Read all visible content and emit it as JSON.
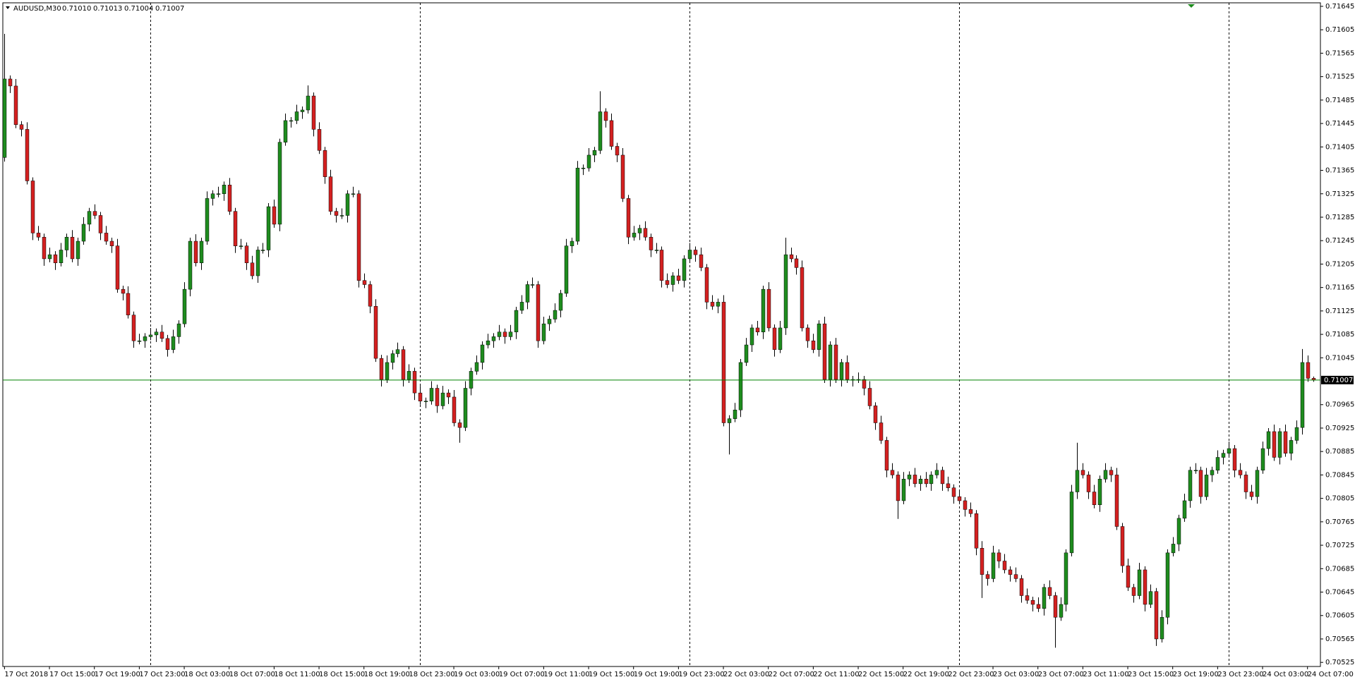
{
  "chart_data": {
    "type": "candlestick",
    "symbol": "AUDUSD,M30",
    "header_values": [
      "0.71010",
      "0.71013",
      "0.71004",
      "0.71007"
    ],
    "up_color": "#1e8c1e",
    "down_color": "#d42020",
    "wick_color": "#000000",
    "grid": false,
    "last_price": {
      "value": 0.71007,
      "label": "0.71007"
    },
    "last_price_color": "#008000",
    "xlim": [
      -0.3,
      234.3
    ],
    "ylim": [
      0.70518,
      0.71651
    ],
    "separators": [
      26,
      74,
      122,
      170,
      218
    ],
    "yticks": [
      0.71645,
      0.71605,
      0.71565,
      0.71525,
      0.71485,
      0.71445,
      0.71405,
      0.71365,
      0.71325,
      0.71285,
      0.71245,
      0.71205,
      0.71165,
      0.71125,
      0.71085,
      0.71045,
      0.70965,
      0.70925,
      0.70885,
      0.70845,
      0.70805,
      0.70765,
      0.70725,
      0.70685,
      0.70645,
      0.70605,
      0.70565,
      0.70525
    ],
    "xticks": [
      {
        "value": 0,
        "label": "17 Oct 2018"
      },
      {
        "value": 8,
        "label": "17 Oct 15:00"
      },
      {
        "value": 16,
        "label": "17 Oct 19:00"
      },
      {
        "value": 24,
        "label": "17 Oct 23:00"
      },
      {
        "value": 32,
        "label": "18 Oct 03:00"
      },
      {
        "value": 40,
        "label": "18 Oct 07:00"
      },
      {
        "value": 48,
        "label": "18 Oct 11:00"
      },
      {
        "value": 56,
        "label": "18 Oct 15:00"
      },
      {
        "value": 64,
        "label": "18 Oct 19:00"
      },
      {
        "value": 72,
        "label": "18 Oct 23:00"
      },
      {
        "value": 80,
        "label": "19 Oct 03:00"
      },
      {
        "value": 88,
        "label": "19 Oct 07:00"
      },
      {
        "value": 96,
        "label": "19 Oct 11:00"
      },
      {
        "value": 104,
        "label": "19 Oct 15:00"
      },
      {
        "value": 112,
        "label": "19 Oct 19:00"
      },
      {
        "value": 120,
        "label": "19 Oct 23:00"
      },
      {
        "value": 128,
        "label": "22 Oct 03:00"
      },
      {
        "value": 136,
        "label": "22 Oct 07:00"
      },
      {
        "value": 144,
        "label": "22 Oct 11:00"
      },
      {
        "value": 152,
        "label": "22 Oct 15:00"
      },
      {
        "value": 160,
        "label": "22 Oct 19:00"
      },
      {
        "value": 168,
        "label": "22 Oct 23:00"
      },
      {
        "value": 176,
        "label": "23 Oct 03:00"
      },
      {
        "value": 184,
        "label": "23 Oct 07:00"
      },
      {
        "value": 192,
        "label": "23 Oct 11:00"
      },
      {
        "value": 200,
        "label": "23 Oct 15:00"
      },
      {
        "value": 208,
        "label": "23 Oct 19:00"
      },
      {
        "value": 216,
        "label": "23 Oct 23:00"
      },
      {
        "value": 224,
        "label": "24 Oct 03:00"
      },
      {
        "value": 232,
        "label": "24 Oct 07:00"
      }
    ],
    "open": [
      0.71387,
      0.71521,
      0.71509,
      0.71443,
      0.71435,
      0.71347,
      0.71258,
      0.71251,
      0.71214,
      0.71221,
      0.71207,
      0.71229,
      0.71251,
      0.71214,
      0.71244,
      0.71273,
      0.71295,
      0.71288,
      0.71258,
      0.71244,
      0.71236,
      0.71162,
      0.71155,
      0.71118,
      0.71074,
      0.71074,
      0.71081,
      0.71084,
      0.71089,
      0.71078,
      0.71059,
      0.71081,
      0.71103,
      0.71162,
      0.71244,
      0.71207,
      0.71244,
      0.71317,
      0.71325,
      0.71325,
      0.7134,
      0.71295,
      0.71236,
      0.71236,
      0.71207,
      0.71185,
      0.71229,
      0.71229,
      0.71303,
      0.71273,
      0.71413,
      0.7145,
      0.7145,
      0.71465,
      0.71468,
      0.71492,
      0.71435,
      0.71399,
      0.71354,
      0.71295,
      0.71288,
      0.71288,
      0.71325,
      0.71325,
      0.71177,
      0.7117,
      0.71133,
      0.71044,
      0.71008,
      0.71037,
      0.71052,
      0.71059,
      0.71008,
      0.71022,
      0.70985,
      0.70971,
      0.70971,
      0.70993,
      0.70963,
      0.70985,
      0.70978,
      0.70934,
      0.70926,
      0.70993,
      0.71022,
      0.71037,
      0.71067,
      0.71074,
      0.71081,
      0.71089,
      0.71081,
      0.71089,
      0.71126,
      0.7114,
      0.7117,
      0.7117,
      0.71074,
      0.71103,
      0.71111,
      0.71126,
      0.71155,
      0.71236,
      0.71244,
      0.71369,
      0.71369,
      0.71391,
      0.71399,
      0.71465,
      0.7145,
      0.71406,
      0.71391,
      0.71317,
      0.71251,
      0.71258,
      0.71266,
      0.71251,
      0.71229,
      0.71229,
      0.71177,
      0.7117,
      0.71185,
      0.71177,
      0.71214,
      0.71229,
      0.71221,
      0.71199,
      0.7114,
      0.71133,
      0.7114,
      0.70934,
      0.70941,
      0.70956,
      0.71037,
      0.71067,
      0.71096,
      0.71089,
      0.71162,
      0.71096,
      0.71059,
      0.71096,
      0.71221,
      0.71214,
      0.71199,
      0.71096,
      0.71074,
      0.71059,
      0.71103,
      0.71008,
      0.71067,
      0.71008,
      0.71037,
      0.71008,
      0.71008,
      0.71008,
      0.70993,
      0.70963,
      0.70934,
      0.70904,
      0.70853,
      0.70845,
      0.70801,
      0.70838,
      0.70845,
      0.7083,
      0.70838,
      0.7083,
      0.70845,
      0.70853,
      0.7083,
      0.70823,
      0.70808,
      0.70801,
      0.70786,
      0.70779,
      0.7072,
      0.70675,
      0.70668,
      0.70712,
      0.70698,
      0.70683,
      0.70675,
      0.70668,
      0.70639,
      0.70631,
      0.70624,
      0.70617,
      0.70653,
      0.70639,
      0.70602,
      0.70624,
      0.70712,
      0.70816,
      0.70853,
      0.70845,
      0.70816,
      0.70794,
      0.70838,
      0.70853,
      0.70845,
      0.70757,
      0.7069,
      0.70653,
      0.70639,
      0.70683,
      0.70624,
      0.70646,
      0.70565,
      0.70602,
      0.70712,
      0.70727,
      0.70771,
      0.70801,
      0.70853,
      0.70853,
      0.70808,
      0.70845,
      0.70853,
      0.70875,
      0.70882,
      0.7089,
      0.70853,
      0.70845,
      0.70816,
      0.70808,
      0.70853,
      0.7089,
      0.70919,
      0.70875,
      0.70919,
      0.70882,
      0.70904,
      0.70926,
      0.71037,
      0.7101
    ],
    "high": [
      0.71598,
      0.71527,
      0.71521,
      0.71449,
      0.71447,
      0.71353,
      0.7127,
      0.71257,
      0.71233,
      0.71227,
      0.71241,
      0.71257,
      0.71263,
      0.7125,
      0.71285,
      0.71301,
      0.71307,
      0.71294,
      0.7127,
      0.7125,
      0.71248,
      0.71168,
      0.71167,
      0.71124,
      0.71086,
      0.71087,
      0.71096,
      0.71095,
      0.71101,
      0.71084,
      0.71093,
      0.71109,
      0.71174,
      0.7125,
      0.71256,
      0.7125,
      0.71329,
      0.71331,
      0.71337,
      0.71346,
      0.71352,
      0.71301,
      0.71248,
      0.71242,
      0.71219,
      0.71235,
      0.71241,
      0.71309,
      0.71315,
      0.71419,
      0.71462,
      0.71456,
      0.71477,
      0.71474,
      0.7151,
      0.71498,
      0.71447,
      0.71405,
      0.71366,
      0.71301,
      0.713,
      0.71331,
      0.71337,
      0.71331,
      0.71189,
      0.71176,
      0.71145,
      0.7105,
      0.71049,
      0.71058,
      0.71071,
      0.71065,
      0.71034,
      0.71028,
      0.70997,
      0.70977,
      0.71005,
      0.70999,
      0.70997,
      0.70991,
      0.7099,
      0.7094,
      0.71005,
      0.71028,
      0.71049,
      0.71073,
      0.71086,
      0.71087,
      0.71101,
      0.71095,
      0.71101,
      0.71132,
      0.71152,
      0.71176,
      0.71182,
      0.71176,
      0.71115,
      0.71117,
      0.71138,
      0.71161,
      0.71248,
      0.7125,
      0.71381,
      0.71375,
      0.71403,
      0.71405,
      0.715,
      0.71471,
      0.71462,
      0.71412,
      0.71403,
      0.71323,
      0.7127,
      0.71272,
      0.71278,
      0.71257,
      0.71241,
      0.71235,
      0.71189,
      0.71191,
      0.71197,
      0.7122,
      0.71241,
      0.71235,
      0.71233,
      0.71205,
      0.71152,
      0.71146,
      0.71152,
      0.70947,
      0.70968,
      0.71043,
      0.71079,
      0.71102,
      0.71108,
      0.71168,
      0.71174,
      0.71102,
      0.71108,
      0.7125,
      0.71233,
      0.7122,
      0.71211,
      0.71102,
      0.71086,
      0.71109,
      0.71115,
      0.71073,
      0.71079,
      0.71043,
      0.71049,
      0.71014,
      0.7102,
      0.71014,
      0.71005,
      0.70969,
      0.70946,
      0.7091,
      0.70865,
      0.70851,
      0.7085,
      0.70851,
      0.70857,
      0.70844,
      0.7085,
      0.70851,
      0.70865,
      0.70859,
      0.70842,
      0.70829,
      0.7082,
      0.70807,
      0.70798,
      0.70785,
      0.70732,
      0.70681,
      0.70724,
      0.70718,
      0.7071,
      0.70689,
      0.70687,
      0.70674,
      0.70651,
      0.70637,
      0.70636,
      0.70659,
      0.70665,
      0.70645,
      0.70636,
      0.70718,
      0.70828,
      0.709,
      0.70865,
      0.70851,
      0.70828,
      0.70844,
      0.70865,
      0.70859,
      0.70857,
      0.70763,
      0.70702,
      0.70659,
      0.70695,
      0.70689,
      0.70658,
      0.70652,
      0.70614,
      0.70718,
      0.70739,
      0.70777,
      0.70813,
      0.70859,
      0.70865,
      0.70859,
      0.70857,
      0.70859,
      0.70887,
      0.70888,
      0.70902,
      0.70896,
      0.70865,
      0.70851,
      0.70828,
      0.70859,
      0.70902,
      0.70925,
      0.70931,
      0.70925,
      0.70931,
      0.7091,
      0.70938,
      0.7106,
      0.71049,
      0.71013
    ],
    "low": [
      0.7138,
      0.71497,
      0.71437,
      0.71423,
      0.71341,
      0.71246,
      0.71245,
      0.71202,
      0.71208,
      0.71195,
      0.71201,
      0.71217,
      0.71208,
      0.71202,
      0.71238,
      0.71261,
      0.71282,
      0.71246,
      0.71238,
      0.71224,
      0.71156,
      0.71143,
      0.71112,
      0.71062,
      0.71068,
      0.71062,
      0.71075,
      0.71072,
      0.71072,
      0.71047,
      0.71053,
      0.71069,
      0.71097,
      0.7115,
      0.71201,
      0.71195,
      0.71238,
      0.71305,
      0.71319,
      0.71313,
      0.71289,
      0.71224,
      0.7123,
      0.71195,
      0.71179,
      0.71173,
      0.71223,
      0.71217,
      0.71267,
      0.71261,
      0.71407,
      0.71438,
      0.71444,
      0.71453,
      0.71462,
      0.71423,
      0.71393,
      0.71342,
      0.71289,
      0.71276,
      0.71282,
      0.71276,
      0.71319,
      0.71165,
      0.71164,
      0.71121,
      0.71038,
      0.70996,
      0.71002,
      0.71025,
      0.71046,
      0.70996,
      0.71002,
      0.70973,
      0.70965,
      0.70959,
      0.70965,
      0.70951,
      0.70957,
      0.70966,
      0.70928,
      0.709,
      0.7092,
      0.70981,
      0.71016,
      0.71025,
      0.71061,
      0.71062,
      0.71075,
      0.71069,
      0.71075,
      0.71077,
      0.7112,
      0.71128,
      0.71164,
      0.71062,
      0.71068,
      0.71091,
      0.71105,
      0.71114,
      0.71149,
      0.71224,
      0.71238,
      0.71357,
      0.71363,
      0.71379,
      0.71393,
      0.71438,
      0.714,
      0.71379,
      0.71311,
      0.71239,
      0.71245,
      0.71246,
      0.71245,
      0.71217,
      0.71223,
      0.71165,
      0.71164,
      0.71158,
      0.71171,
      0.71165,
      0.71208,
      0.71209,
      0.71193,
      0.71128,
      0.71127,
      0.71121,
      0.70928,
      0.7088,
      0.70935,
      0.70944,
      0.71031,
      0.71055,
      0.71083,
      0.71077,
      0.7109,
      0.71047,
      0.71053,
      0.71084,
      0.71208,
      0.71187,
      0.7109,
      0.71062,
      0.71053,
      0.71047,
      0.71002,
      0.70996,
      0.71002,
      0.70996,
      0.71002,
      0.70996,
      0.71002,
      0.70981,
      0.70957,
      0.70922,
      0.70898,
      0.70841,
      0.70839,
      0.7077,
      0.70795,
      0.70826,
      0.70824,
      0.70818,
      0.70824,
      0.70818,
      0.70839,
      0.70818,
      0.70817,
      0.70796,
      0.70795,
      0.70774,
      0.70773,
      0.70708,
      0.70635,
      0.70656,
      0.70662,
      0.70686,
      0.70677,
      0.70663,
      0.70662,
      0.70627,
      0.70625,
      0.70612,
      0.70611,
      0.70605,
      0.70633,
      0.7055,
      0.70596,
      0.70612,
      0.70706,
      0.70804,
      0.70839,
      0.70804,
      0.70788,
      0.70782,
      0.70832,
      0.70833,
      0.70751,
      0.70678,
      0.70647,
      0.70627,
      0.70633,
      0.70612,
      0.70618,
      0.70553,
      0.70559,
      0.7059,
      0.70706,
      0.70715,
      0.70765,
      0.70789,
      0.70847,
      0.70796,
      0.70802,
      0.70833,
      0.70847,
      0.70863,
      0.70876,
      0.70841,
      0.70839,
      0.70804,
      0.70802,
      0.70796,
      0.70847,
      0.70878,
      0.70869,
      0.70863,
      0.70876,
      0.7087,
      0.70898,
      0.70914,
      0.71004,
      0.71004
    ],
    "close": [
      0.71521,
      0.71509,
      0.71443,
      0.71435,
      0.71347,
      0.71258,
      0.71251,
      0.71214,
      0.71221,
      0.71207,
      0.71229,
      0.71251,
      0.71214,
      0.71244,
      0.71273,
      0.71295,
      0.71288,
      0.71258,
      0.71244,
      0.71236,
      0.71162,
      0.71155,
      0.71118,
      0.71074,
      0.71074,
      0.71081,
      0.71084,
      0.71089,
      0.71078,
      0.71059,
      0.71081,
      0.71103,
      0.71162,
      0.71244,
      0.71207,
      0.71244,
      0.71317,
      0.71325,
      0.71325,
      0.7134,
      0.71295,
      0.71236,
      0.71236,
      0.71207,
      0.71185,
      0.71229,
      0.71229,
      0.71303,
      0.71273,
      0.71413,
      0.7145,
      0.7145,
      0.71465,
      0.71468,
      0.71492,
      0.71435,
      0.71399,
      0.71354,
      0.71295,
      0.71288,
      0.71288,
      0.71325,
      0.71325,
      0.71177,
      0.7117,
      0.71133,
      0.71044,
      0.71008,
      0.71037,
      0.71052,
      0.71059,
      0.71008,
      0.71022,
      0.70985,
      0.70971,
      0.70971,
      0.70993,
      0.70963,
      0.70985,
      0.70978,
      0.70934,
      0.70926,
      0.70993,
      0.71022,
      0.71037,
      0.71067,
      0.71074,
      0.71081,
      0.71089,
      0.71081,
      0.71089,
      0.71126,
      0.7114,
      0.7117,
      0.7117,
      0.71074,
      0.71103,
      0.71111,
      0.71126,
      0.71155,
      0.71236,
      0.71244,
      0.71369,
      0.71369,
      0.71391,
      0.71399,
      0.71465,
      0.7145,
      0.71406,
      0.71391,
      0.71317,
      0.71251,
      0.71258,
      0.71266,
      0.71251,
      0.71229,
      0.71229,
      0.71177,
      0.7117,
      0.71185,
      0.71177,
      0.71214,
      0.71229,
      0.71221,
      0.71199,
      0.7114,
      0.71133,
      0.7114,
      0.70934,
      0.70941,
      0.70956,
      0.71037,
      0.71067,
      0.71096,
      0.71089,
      0.71162,
      0.71096,
      0.71059,
      0.71096,
      0.71221,
      0.71214,
      0.71199,
      0.71096,
      0.71074,
      0.71059,
      0.71103,
      0.71008,
      0.71067,
      0.71008,
      0.71037,
      0.71008,
      0.71008,
      0.71008,
      0.70993,
      0.70963,
      0.70934,
      0.70904,
      0.70853,
      0.70845,
      0.70801,
      0.70838,
      0.70845,
      0.7083,
      0.70838,
      0.7083,
      0.70845,
      0.70853,
      0.7083,
      0.70823,
      0.70808,
      0.70801,
      0.70786,
      0.70779,
      0.7072,
      0.70675,
      0.70668,
      0.70712,
      0.70698,
      0.70683,
      0.70675,
      0.70668,
      0.70639,
      0.70631,
      0.70624,
      0.70617,
      0.70653,
      0.70639,
      0.70602,
      0.70624,
      0.70712,
      0.70816,
      0.70853,
      0.70845,
      0.70816,
      0.70794,
      0.70838,
      0.70853,
      0.70845,
      0.70757,
      0.7069,
      0.70653,
      0.70639,
      0.70683,
      0.70624,
      0.70646,
      0.70565,
      0.70602,
      0.70712,
      0.70727,
      0.70771,
      0.70801,
      0.70853,
      0.70853,
      0.70808,
      0.70845,
      0.70853,
      0.70875,
      0.70882,
      0.7089,
      0.70853,
      0.70845,
      0.70816,
      0.70808,
      0.70853,
      0.7089,
      0.70919,
      0.70875,
      0.70919,
      0.70882,
      0.70904,
      0.70926,
      0.71037,
      0.7101,
      0.71007
    ]
  }
}
